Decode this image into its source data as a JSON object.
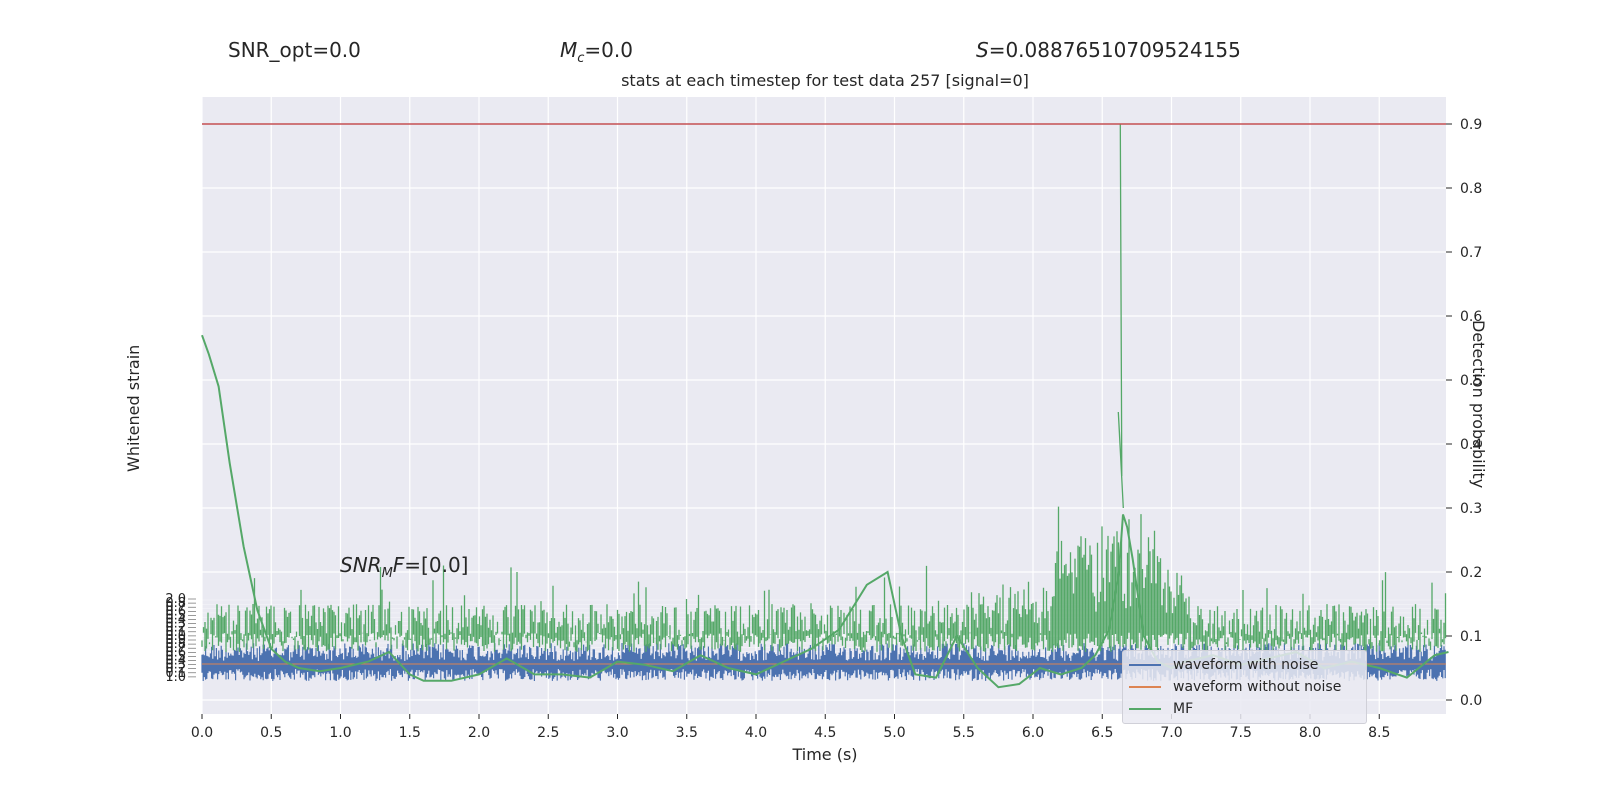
{
  "header": {
    "snr_opt": "SNR_opt=0.0",
    "mc_symbol": "M",
    "mc_sub": "c",
    "mc_value": "=0.0",
    "s_symbol": "S",
    "s_value": "=0.08876510709524155",
    "title": "stats at each timestep for test data 257 [signal=0]"
  },
  "annotation": {
    "snr_mf_prefix": "SNR",
    "snr_mf_sub": "M",
    "snr_mf_mid": "F",
    "snr_mf_value": "=[0.0]"
  },
  "colors": {
    "background": "#eaeaf2",
    "grid": "#ffffff",
    "waveform_with_noise": "#4c72b0",
    "waveform_without_noise": "#dd8452",
    "mf": "#55a868",
    "threshold": "#c44e52"
  },
  "chart_data": {
    "type": "line",
    "title": "stats at each timestep for test data 257 [signal=0]",
    "xlabel": "Time (s)",
    "ylabel_left": "Whitened strain",
    "ylabel_right": "Detection probability",
    "xlim": [
      0.0,
      9.0
    ],
    "ylim_right": [
      -0.02,
      0.94
    ],
    "x_ticks": [
      "0.0",
      "0.5",
      "1.0",
      "1.5",
      "2.0",
      "2.5",
      "3.0",
      "3.5",
      "4.0",
      "4.5",
      "5.0",
      "5.5",
      "6.0",
      "6.5",
      "7.0",
      "7.5",
      "8.0",
      "8.5"
    ],
    "y_right_ticks": [
      "0.0",
      "0.1",
      "0.2",
      "0.3",
      "0.4",
      "0.5",
      "0.6",
      "0.7",
      "0.8",
      "0.9"
    ],
    "left_tick_labels_visible": [
      "2.0",
      "1.0"
    ],
    "grid": true,
    "legend_placement": "lower-right",
    "threshold": 0.9,
    "series": [
      {
        "name": "waveform with noise",
        "color": "#4c72b0",
        "description_band": [
          0.03,
          0.09
        ]
      },
      {
        "name": "waveform without noise",
        "color": "#dd8452",
        "values": "flat"
      },
      {
        "name": "MF",
        "color": "#55a868"
      }
    ],
    "detection_probability": {
      "x": [
        0.0,
        0.05,
        0.12,
        0.2,
        0.3,
        0.4,
        0.5,
        0.6,
        0.7,
        0.85,
        1.0,
        1.2,
        1.35,
        1.5,
        1.6,
        1.8,
        2.0,
        2.2,
        2.4,
        2.6,
        2.8,
        3.0,
        3.2,
        3.4,
        3.6,
        3.8,
        4.0,
        4.2,
        4.4,
        4.6,
        4.8,
        4.95,
        5.05,
        5.15,
        5.3,
        5.45,
        5.6,
        5.75,
        5.9,
        6.05,
        6.2,
        6.35,
        6.45,
        6.55,
        6.62,
        6.65,
        6.68,
        6.72,
        6.8,
        6.9,
        7.0,
        7.1,
        7.3,
        7.5,
        7.7,
        7.9,
        8.1,
        8.3,
        8.5,
        8.7,
        8.9,
        9.0
      ],
      "y": [
        0.57,
        0.54,
        0.49,
        0.37,
        0.24,
        0.14,
        0.08,
        0.06,
        0.05,
        0.045,
        0.05,
        0.06,
        0.075,
        0.04,
        0.03,
        0.03,
        0.04,
        0.065,
        0.04,
        0.04,
        0.035,
        0.06,
        0.055,
        0.045,
        0.07,
        0.05,
        0.04,
        0.06,
        0.08,
        0.11,
        0.18,
        0.2,
        0.1,
        0.04,
        0.035,
        0.1,
        0.05,
        0.02,
        0.025,
        0.05,
        0.04,
        0.05,
        0.07,
        0.11,
        0.2,
        0.29,
        0.27,
        0.22,
        0.1,
        0.06,
        0.05,
        0.06,
        0.07,
        0.055,
        0.065,
        0.075,
        0.05,
        0.06,
        0.05,
        0.035,
        0.07,
        0.075
      ]
    }
  },
  "legend": {
    "items": [
      {
        "label": "waveform with noise",
        "color": "#4c72b0"
      },
      {
        "label": "waveform without noise",
        "color": "#dd8452"
      },
      {
        "label": "MF",
        "color": "#55a868"
      }
    ]
  }
}
